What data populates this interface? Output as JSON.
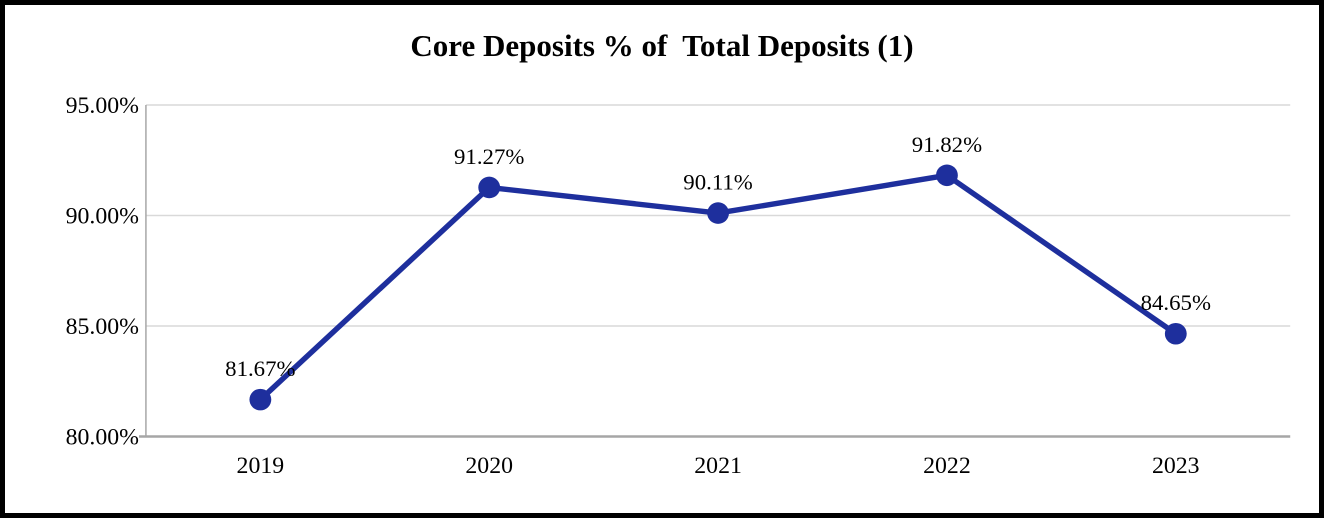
{
  "title": "Core Deposits % of  Total Deposits (1)",
  "chart_data": {
    "type": "line",
    "title": "Core Deposits % of  Total Deposits (1)",
    "categories": [
      "2019",
      "2020",
      "2021",
      "2022",
      "2023"
    ],
    "values": [
      81.67,
      91.27,
      90.11,
      91.82,
      84.65
    ],
    "point_labels": [
      "81.67%",
      "91.27%",
      "90.11%",
      "91.82%",
      "84.65%"
    ],
    "series_name": "Core Deposits % of Total Deposits",
    "xlabel": "",
    "ylabel": "",
    "ylim": [
      80,
      95
    ],
    "yticks": [
      {
        "value": 80,
        "label": "80.00%"
      },
      {
        "value": 85,
        "label": "85.00%"
      },
      {
        "value": 90,
        "label": "90.00%"
      },
      {
        "value": 95,
        "label": "95.00%"
      }
    ],
    "grid": true,
    "legend_position": "none",
    "line_color": "#1e2f9d",
    "marker_color": "#1e2f9d",
    "gridline_color": "#d9d9d9",
    "axis_line_color": "#a6a6a6",
    "label_color": "#000000",
    "border_color": "#000000",
    "background_color": "#ffffff"
  }
}
